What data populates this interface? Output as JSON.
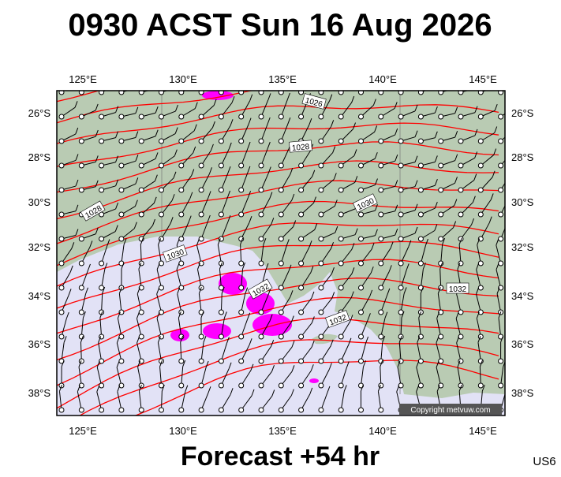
{
  "header": {
    "title": "0930 ACST Sun 16 Aug 2026"
  },
  "map": {
    "lon_labels": [
      "125°E",
      "130°E",
      "135°E",
      "140°E",
      "145°E"
    ],
    "lat_labels": [
      "26°S",
      "28°S",
      "30°S",
      "32°S",
      "34°S",
      "36°S",
      "38°S"
    ],
    "isobar_labels": [
      "1026",
      "1028",
      "1028",
      "1030",
      "1030",
      "1032",
      "1032",
      "1032"
    ],
    "copyright": "Copyright metvuw.com"
  },
  "footer": {
    "forecast": "Forecast +54 hr",
    "station": "US6"
  }
}
